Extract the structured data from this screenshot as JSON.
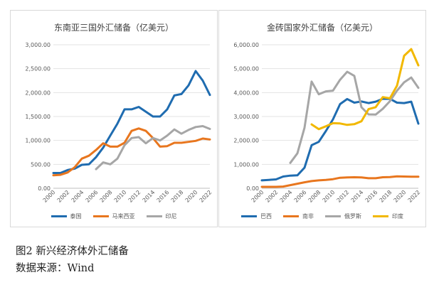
{
  "caption": {
    "figure": "图2  新兴经济体外汇储备",
    "source": "数据来源：Wind"
  },
  "chart_data": [
    {
      "type": "line",
      "title": "东南亚三国外汇储备（亿美元）",
      "x": [
        2000,
        2001,
        2002,
        2003,
        2004,
        2005,
        2006,
        2007,
        2008,
        2009,
        2010,
        2011,
        2012,
        2013,
        2014,
        2015,
        2016,
        2017,
        2018,
        2019,
        2020,
        2021,
        2022
      ],
      "xticks": [
        "2000",
        "2002",
        "2004",
        "2006",
        "2008",
        "2010",
        "2012",
        "2014",
        "2016",
        "2018",
        "2020",
        "2022"
      ],
      "ylim": [
        0,
        3000
      ],
      "yticks": [
        "0.00",
        "500.00",
        "1,000.00",
        "1,500.00",
        "2,000.00",
        "2,500.00",
        "3,000.00"
      ],
      "grid": true,
      "legend_position": "bottom",
      "series": [
        {
          "name": "泰国",
          "color": "#1f6cb0",
          "values": [
            320,
            320,
            380,
            410,
            490,
            500,
            650,
            850,
            1100,
            1350,
            1650,
            1650,
            1700,
            1600,
            1500,
            1500,
            1650,
            1940,
            1970,
            2150,
            2450,
            2250,
            1950
          ]
        },
        {
          "name": "马来西亚",
          "color": "#e8761e",
          "values": [
            270,
            280,
            330,
            440,
            620,
            680,
            800,
            940,
            870,
            870,
            950,
            1200,
            1250,
            1200,
            1050,
            870,
            880,
            950,
            950,
            970,
            990,
            1040,
            1020
          ]
        },
        {
          "name": "印尼",
          "color": "#a6a6a6",
          "values": [
            null,
            null,
            null,
            null,
            null,
            null,
            400,
            540,
            500,
            620,
            900,
            1050,
            1070,
            940,
            1050,
            1000,
            1100,
            1230,
            1140,
            1220,
            1280,
            1300,
            1240
          ]
        }
      ]
    },
    {
      "type": "line",
      "title": "金砖国家外汇储备（亿美元）",
      "x": [
        2000,
        2001,
        2002,
        2003,
        2004,
        2005,
        2006,
        2007,
        2008,
        2009,
        2010,
        2011,
        2012,
        2013,
        2014,
        2015,
        2016,
        2017,
        2018,
        2019,
        2020,
        2021,
        2022
      ],
      "xticks": [
        "2000",
        "2002",
        "2004",
        "2006",
        "2008",
        "2010",
        "2012",
        "2014",
        "2016",
        "2018",
        "2020",
        "2022"
      ],
      "ylim": [
        0,
        6000
      ],
      "yticks": [
        "0.00",
        "1,000.00",
        "2,000.00",
        "3,000.00",
        "4,000.00",
        "5,000.00",
        "6,000.00"
      ],
      "grid": true,
      "legend_position": "bottom",
      "series": [
        {
          "name": "巴西",
          "color": "#1f6cb0",
          "values": [
            330,
            350,
            370,
            490,
            530,
            540,
            860,
            1800,
            1940,
            2390,
            2880,
            3520,
            3730,
            3580,
            3630,
            3560,
            3620,
            3740,
            3740,
            3580,
            3560,
            3620,
            2700
          ]
        },
        {
          "name": "南非",
          "color": "#e8761e",
          "values": [
            60,
            60,
            60,
            70,
            130,
            190,
            250,
            300,
            330,
            350,
            380,
            440,
            450,
            460,
            450,
            420,
            420,
            460,
            470,
            500,
            490,
            480,
            480
          ]
        },
        {
          "name": "俄罗斯",
          "color": "#a6a6a6",
          "values": [
            null,
            null,
            null,
            null,
            1060,
            1460,
            2530,
            4460,
            3930,
            4050,
            4080,
            4540,
            4870,
            4700,
            3390,
            3090,
            3080,
            3320,
            3640,
            4080,
            4430,
            4630,
            4200
          ]
        },
        {
          "name": "印度",
          "color": "#f2b800",
          "values": [
            null,
            null,
            null,
            null,
            null,
            null,
            null,
            2670,
            2470,
            2590,
            2720,
            2710,
            2650,
            2680,
            2800,
            3310,
            3390,
            3810,
            3760,
            4290,
            5540,
            5820,
            5140
          ]
        }
      ]
    }
  ]
}
